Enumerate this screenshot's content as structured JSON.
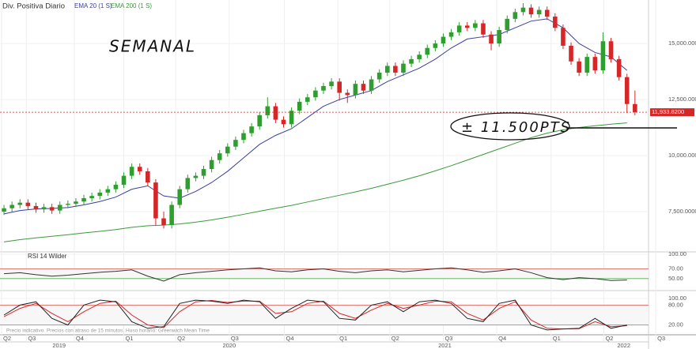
{
  "chart_data": {
    "type": "candlestick",
    "title": "Div. Positiva Diario",
    "annotations": [
      "SEMANAL",
      "± 11.500PTS"
    ],
    "footnote": "Precio indicativo. Precios con atraso de 15 minutos. Huso horario: Greenwich Mean Time",
    "up_color": "#2e9e2e",
    "down_color": "#d62728",
    "xlim": [
      -0.5,
      80.7
    ],
    "xticks": [
      {
        "value": -0.3,
        "label": "Q2"
      },
      {
        "value": 2.8,
        "label": "Q3"
      },
      {
        "value": 8.8,
        "label": "Q4"
      },
      {
        "value": 15.0,
        "label": "Q1"
      },
      {
        "value": 21.5,
        "label": "Q2"
      },
      {
        "value": 28.2,
        "label": "Q3"
      },
      {
        "value": 35.1,
        "label": "Q4"
      },
      {
        "value": 41.8,
        "label": "Q1"
      },
      {
        "value": 48.3,
        "label": "Q2"
      },
      {
        "value": 55.0,
        "label": "Q3"
      },
      {
        "value": 61.7,
        "label": "Q4"
      },
      {
        "value": 68.5,
        "label": "Q1"
      },
      {
        "value": 75.1,
        "label": "Q2"
      },
      {
        "value": 81.6,
        "label": "Q3"
      }
    ],
    "year_labels": [
      {
        "value": 6.9,
        "label": "2019"
      },
      {
        "value": 28.2,
        "label": "2020"
      },
      {
        "value": 55.2,
        "label": "2021"
      },
      {
        "value": 77.6,
        "label": "2022"
      }
    ],
    "ylim": [
      5740,
      16940
    ],
    "yticks": [
      {
        "value": 7500,
        "label": "7,500.0000"
      },
      {
        "value": 10000,
        "label": "10,000.0000"
      },
      {
        "value": 12500,
        "label": "12,500.0000"
      },
      {
        "value": 15000,
        "label": "15,000.0000"
      }
    ],
    "last_price": {
      "value": 11933.82,
      "label": "11,933.8200"
    },
    "candles": [
      [
        7500,
        7800,
        7350,
        7650
      ],
      [
        7650,
        7950,
        7500,
        7800
      ],
      [
        7800,
        8050,
        7650,
        7900
      ],
      [
        7900,
        8050,
        7600,
        7750
      ],
      [
        7750,
        7900,
        7450,
        7600
      ],
      [
        7600,
        7850,
        7450,
        7700
      ],
      [
        7700,
        7850,
        7400,
        7550
      ],
      [
        7550,
        7950,
        7400,
        7800
      ],
      [
        7800,
        8000,
        7650,
        7850
      ],
      [
        7850,
        8100,
        7700,
        7950
      ],
      [
        7950,
        8250,
        7800,
        8100
      ],
      [
        8100,
        8350,
        7950,
        8200
      ],
      [
        8200,
        8500,
        8050,
        8350
      ],
      [
        8350,
        8650,
        8200,
        8500
      ],
      [
        8500,
        8850,
        8350,
        8700
      ],
      [
        8700,
        9250,
        8550,
        9100
      ],
      [
        9100,
        9650,
        8950,
        9500
      ],
      [
        9500,
        9650,
        9150,
        9300
      ],
      [
        9300,
        9450,
        8650,
        8800
      ],
      [
        8800,
        8950,
        6900,
        7200
      ],
      [
        7200,
        7500,
        6750,
        6900
      ],
      [
        6900,
        7950,
        6750,
        7800
      ],
      [
        7800,
        8650,
        7650,
        8500
      ],
      [
        8500,
        9150,
        8350,
        9000
      ],
      [
        9000,
        9250,
        8850,
        9100
      ],
      [
        9100,
        9550,
        8950,
        9400
      ],
      [
        9400,
        9950,
        9250,
        9800
      ],
      [
        9800,
        10250,
        9650,
        10100
      ],
      [
        10100,
        10550,
        9950,
        10400
      ],
      [
        10400,
        10850,
        10250,
        10700
      ],
      [
        10700,
        11150,
        10550,
        11000
      ],
      [
        11000,
        11450,
        10850,
        11300
      ],
      [
        11300,
        11950,
        11150,
        11800
      ],
      [
        11800,
        12600,
        11650,
        12200
      ],
      [
        12200,
        12350,
        11450,
        11600
      ],
      [
        11600,
        11750,
        11250,
        11400
      ],
      [
        11400,
        12150,
        11250,
        12000
      ],
      [
        12000,
        12550,
        11850,
        12400
      ],
      [
        12400,
        12750,
        12250,
        12600
      ],
      [
        12600,
        13050,
        12450,
        12900
      ],
      [
        12900,
        13250,
        12750,
        13100
      ],
      [
        13100,
        13450,
        12950,
        13300
      ],
      [
        13300,
        13450,
        12450,
        12800
      ],
      [
        12800,
        12950,
        12350,
        12700
      ],
      [
        12700,
        13350,
        12550,
        13200
      ],
      [
        13200,
        13350,
        12750,
        12900
      ],
      [
        12900,
        13550,
        12750,
        13400
      ],
      [
        13400,
        13850,
        13250,
        13700
      ],
      [
        13700,
        14150,
        13550,
        14000
      ],
      [
        14000,
        14150,
        13550,
        13700
      ],
      [
        13700,
        14250,
        13550,
        14100
      ],
      [
        14100,
        14450,
        13950,
        14300
      ],
      [
        14300,
        14650,
        14150,
        14500
      ],
      [
        14500,
        14950,
        14350,
        14800
      ],
      [
        14800,
        15150,
        14650,
        15000
      ],
      [
        15000,
        15450,
        14850,
        15300
      ],
      [
        15300,
        15650,
        15150,
        15500
      ],
      [
        15500,
        15950,
        15350,
        15800
      ],
      [
        15800,
        15950,
        15550,
        15700
      ],
      [
        15700,
        16050,
        15550,
        15900
      ],
      [
        15900,
        16050,
        15250,
        15400
      ],
      [
        15400,
        15550,
        14700,
        15000
      ],
      [
        15000,
        15750,
        14850,
        15600
      ],
      [
        15600,
        16250,
        15450,
        16100
      ],
      [
        16100,
        16550,
        15950,
        16400
      ],
      [
        16400,
        16800,
        16250,
        16600
      ],
      [
        16600,
        16750,
        16150,
        16300
      ],
      [
        16300,
        16650,
        16150,
        16500
      ],
      [
        16500,
        16650,
        16050,
        16200
      ],
      [
        16200,
        16350,
        15550,
        15700
      ],
      [
        15700,
        15850,
        14750,
        14900
      ],
      [
        14900,
        15050,
        14050,
        14200
      ],
      [
        14200,
        14350,
        13550,
        13700
      ],
      [
        13700,
        14550,
        13550,
        14400
      ],
      [
        14400,
        14550,
        13650,
        13800
      ],
      [
        13800,
        15500,
        13650,
        15100
      ],
      [
        15100,
        15250,
        14150,
        14300
      ],
      [
        14300,
        14450,
        13350,
        13500
      ],
      [
        13500,
        13650,
        11900,
        12300
      ],
      [
        12300,
        12900,
        11800,
        11934
      ]
    ],
    "series": [
      {
        "name": "EMA 20 (1 S)",
        "color": "#3a3f9e",
        "x": [
          0,
          2,
          4,
          6,
          8,
          10,
          12,
          14,
          16,
          18,
          20,
          22,
          24,
          26,
          28,
          30,
          32,
          34,
          36,
          38,
          40,
          42,
          44,
          46,
          48,
          50,
          52,
          54,
          56,
          58,
          60,
          62,
          64,
          66,
          68,
          70,
          72,
          74,
          76,
          78
        ],
        "values": [
          7400,
          7550,
          7620,
          7640,
          7680,
          7800,
          7950,
          8150,
          8500,
          8650,
          8200,
          8100,
          8400,
          8800,
          9300,
          9900,
          10500,
          10900,
          11200,
          11700,
          12200,
          12500,
          12700,
          12900,
          13300,
          13600,
          13900,
          14300,
          14800,
          15200,
          15300,
          15400,
          15700,
          16000,
          16100,
          15700,
          15000,
          14600,
          14400,
          13800
        ]
      },
      {
        "name": "EMA 200 (1 S)",
        "color": "#3a9a3a",
        "x": [
          0,
          2,
          4,
          6,
          8,
          10,
          12,
          14,
          16,
          18,
          20,
          22,
          24,
          26,
          28,
          30,
          32,
          34,
          36,
          38,
          40,
          42,
          44,
          46,
          48,
          50,
          52,
          54,
          56,
          58,
          60,
          62,
          64,
          66,
          68,
          70,
          72,
          74,
          76,
          78
        ],
        "values": [
          6150,
          6250,
          6330,
          6400,
          6470,
          6550,
          6620,
          6700,
          6800,
          6870,
          6900,
          6950,
          7030,
          7130,
          7250,
          7380,
          7520,
          7650,
          7780,
          7930,
          8080,
          8230,
          8380,
          8540,
          8720,
          8900,
          9100,
          9320,
          9550,
          9800,
          10050,
          10300,
          10550,
          10800,
          11000,
          11150,
          11250,
          11330,
          11400,
          11460
        ]
      }
    ],
    "rsi": {
      "title": "RSI 14 Wilder",
      "ylim": [
        40,
        100
      ],
      "yticks": [
        {
          "value": 50,
          "label": "50.00"
        },
        {
          "value": 70,
          "label": "70.00"
        },
        {
          "value": 100,
          "label": "100.00"
        }
      ],
      "upper": 70,
      "lower": 50,
      "x": [
        0,
        2,
        4,
        6,
        8,
        10,
        12,
        14,
        16,
        18,
        20,
        22,
        24,
        26,
        28,
        30,
        32,
        34,
        36,
        38,
        40,
        42,
        44,
        46,
        48,
        50,
        52,
        54,
        56,
        58,
        60,
        62,
        64,
        66,
        68,
        70,
        72,
        74,
        76,
        78
      ],
      "values": [
        60,
        62,
        58,
        55,
        57,
        60,
        63,
        65,
        68,
        55,
        45,
        58,
        62,
        65,
        68,
        70,
        72,
        66,
        64,
        68,
        70,
        65,
        62,
        66,
        68,
        64,
        67,
        70,
        72,
        68,
        63,
        66,
        70,
        62,
        52,
        48,
        52,
        50,
        46,
        47
      ],
      "color": "#333333"
    },
    "stochastic": {
      "ylim": [
        0,
        100
      ],
      "yticks": [
        {
          "value": 20,
          "label": "20.00"
        },
        {
          "value": 80,
          "label": "80.00"
        },
        {
          "value": 100,
          "label": "100.00"
        }
      ],
      "upper": 80,
      "lower": 20,
      "x": [
        0,
        2,
        4,
        6,
        8,
        10,
        12,
        14,
        16,
        18,
        20,
        22,
        24,
        26,
        28,
        30,
        32,
        34,
        36,
        38,
        40,
        42,
        44,
        46,
        48,
        50,
        52,
        54,
        56,
        58,
        60,
        62,
        64,
        66,
        68,
        70,
        72,
        74,
        76,
        78
      ],
      "k": [
        50,
        80,
        90,
        40,
        20,
        80,
        95,
        90,
        30,
        10,
        15,
        85,
        95,
        92,
        85,
        95,
        90,
        40,
        70,
        95,
        90,
        40,
        35,
        80,
        90,
        60,
        90,
        95,
        85,
        40,
        30,
        85,
        95,
        20,
        5,
        8,
        10,
        40,
        10,
        20
      ],
      "d": [
        45,
        70,
        85,
        55,
        30,
        60,
        85,
        92,
        50,
        20,
        12,
        60,
        90,
        94,
        88,
        92,
        92,
        55,
        60,
        85,
        92,
        55,
        40,
        65,
        85,
        70,
        80,
        92,
        90,
        55,
        35,
        70,
        90,
        35,
        10,
        8,
        9,
        30,
        15,
        18
      ],
      "k_color": "#222222",
      "d_color": "#d62728"
    }
  }
}
